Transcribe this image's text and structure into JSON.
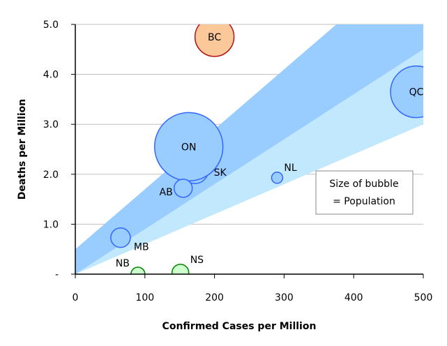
{
  "chart_data": {
    "type": "bubble",
    "title": "",
    "xlabel": "Confirmed Cases per Million",
    "ylabel": "Deaths per Million",
    "xlim": [
      0,
      500
    ],
    "ylim": [
      0,
      5
    ],
    "xticks": [
      0,
      100,
      200,
      300,
      400,
      500
    ],
    "xtick_labels": [
      "0",
      "100",
      "200",
      "300",
      "400",
      "500"
    ],
    "yticks": [
      0,
      1,
      2,
      3,
      4,
      5
    ],
    "ytick_labels": [
      "-",
      "1.0",
      "2.0",
      "3.0",
      "4.0",
      "5.0"
    ],
    "grid": "horizontal",
    "bands": [
      {
        "name": "light-band",
        "lower": [
          [
            0,
            0
          ],
          [
            500,
            3.0
          ]
        ],
        "upper": [
          [
            0,
            0
          ],
          [
            500,
            4.5
          ]
        ],
        "color": "#c1e8fc"
      },
      {
        "name": "dark-band",
        "lower": [
          [
            0,
            0
          ],
          [
            500,
            4.5
          ]
        ],
        "upper": [
          [
            0,
            0.5
          ],
          [
            375,
            5.0
          ]
        ],
        "color": "#99ccff"
      }
    ],
    "series": [
      {
        "label": "BC",
        "x": 200,
        "y": 4.75,
        "size": 28,
        "fill": "#fbc89a",
        "stroke": "#b01010",
        "label_pos": "center"
      },
      {
        "label": "QC",
        "x": 490,
        "y": 3.65,
        "size": 37,
        "fill": "#99ccff",
        "stroke": "#3366ff",
        "label_pos": "center"
      },
      {
        "label": "SK",
        "x": 172,
        "y": 2.08,
        "size": 19,
        "fill": "#99ccff",
        "stroke": "#3366ff",
        "label_pos": "right"
      },
      {
        "label": "ON",
        "x": 163,
        "y": 2.55,
        "size": 49,
        "fill": "#99ccff",
        "stroke": "#3366ff",
        "label_pos": "center"
      },
      {
        "label": "AB",
        "x": 155,
        "y": 1.72,
        "size": 13,
        "fill": "#99ccff",
        "stroke": "#3366ff",
        "label_pos": "left"
      },
      {
        "label": "NL",
        "x": 290,
        "y": 1.93,
        "size": 8,
        "fill": "#99ccff",
        "stroke": "#3366ff",
        "label_pos": "topright"
      },
      {
        "label": "MB",
        "x": 65,
        "y": 0.73,
        "size": 14,
        "fill": "#99ccff",
        "stroke": "#3366ff",
        "label_pos": "bottomright"
      },
      {
        "label": "NB",
        "x": 90,
        "y": 0,
        "size": 10,
        "fill": "#ccffcc",
        "stroke": "#008000",
        "label_pos": "topleft"
      },
      {
        "label": "NS",
        "x": 151,
        "y": 0.03,
        "size": 12,
        "fill": "#ccffcc",
        "stroke": "#008000",
        "label_pos": "topright"
      }
    ],
    "annotation": [
      "Size of bubble",
      "= Population"
    ]
  }
}
